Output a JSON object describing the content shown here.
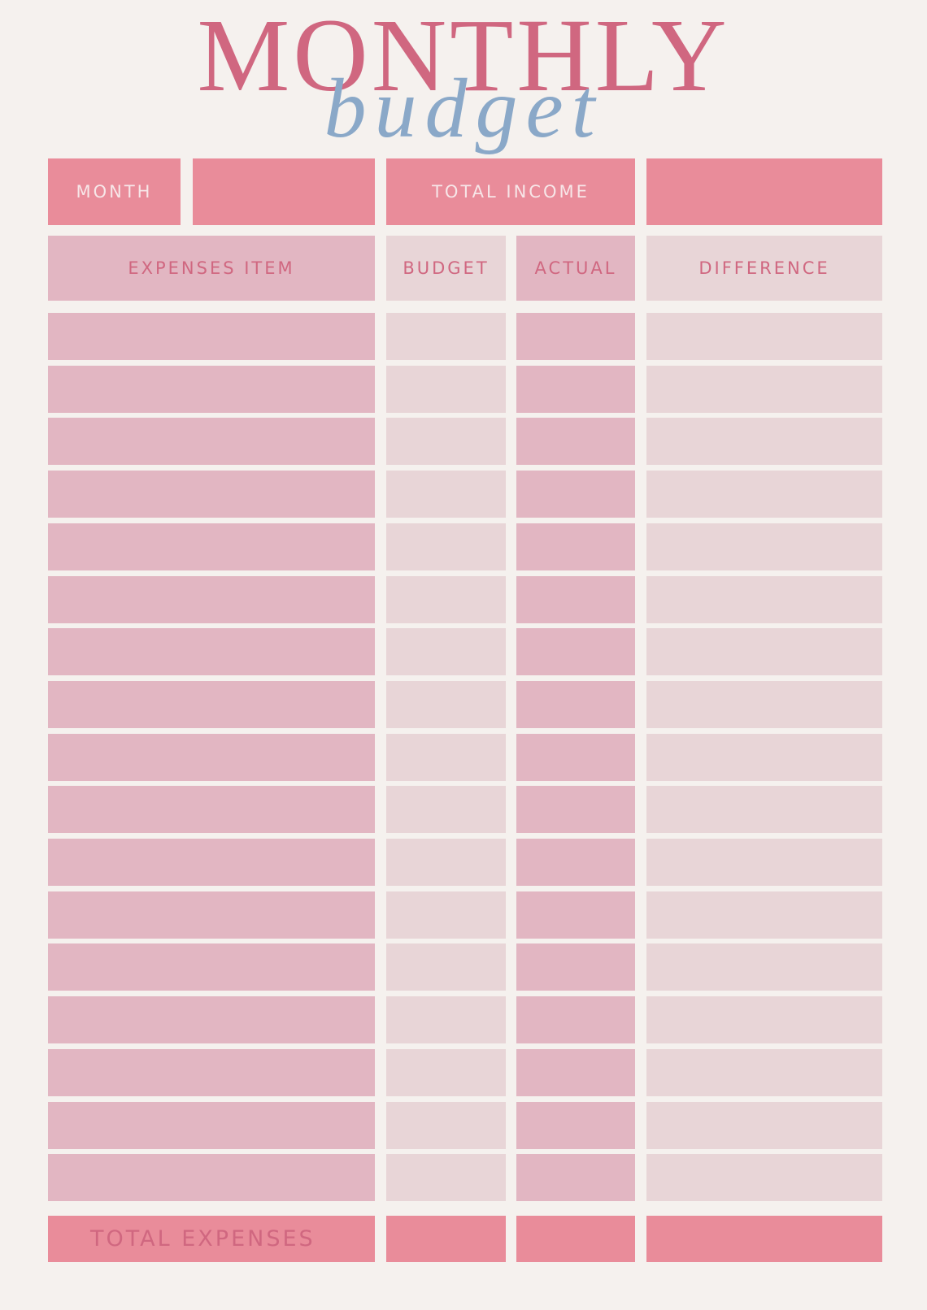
{
  "header": {
    "title": "MONTHLY",
    "subtitle": "budget"
  },
  "summary": {
    "month_label": "MONTH",
    "income_label": "TOTAL INCOME"
  },
  "table": {
    "columns": [
      "EXPENSES ITEM",
      "BUDGET",
      "ACTUAL",
      "DIFFERENCE"
    ],
    "total_label": "TOTAL EXPENSES"
  }
}
